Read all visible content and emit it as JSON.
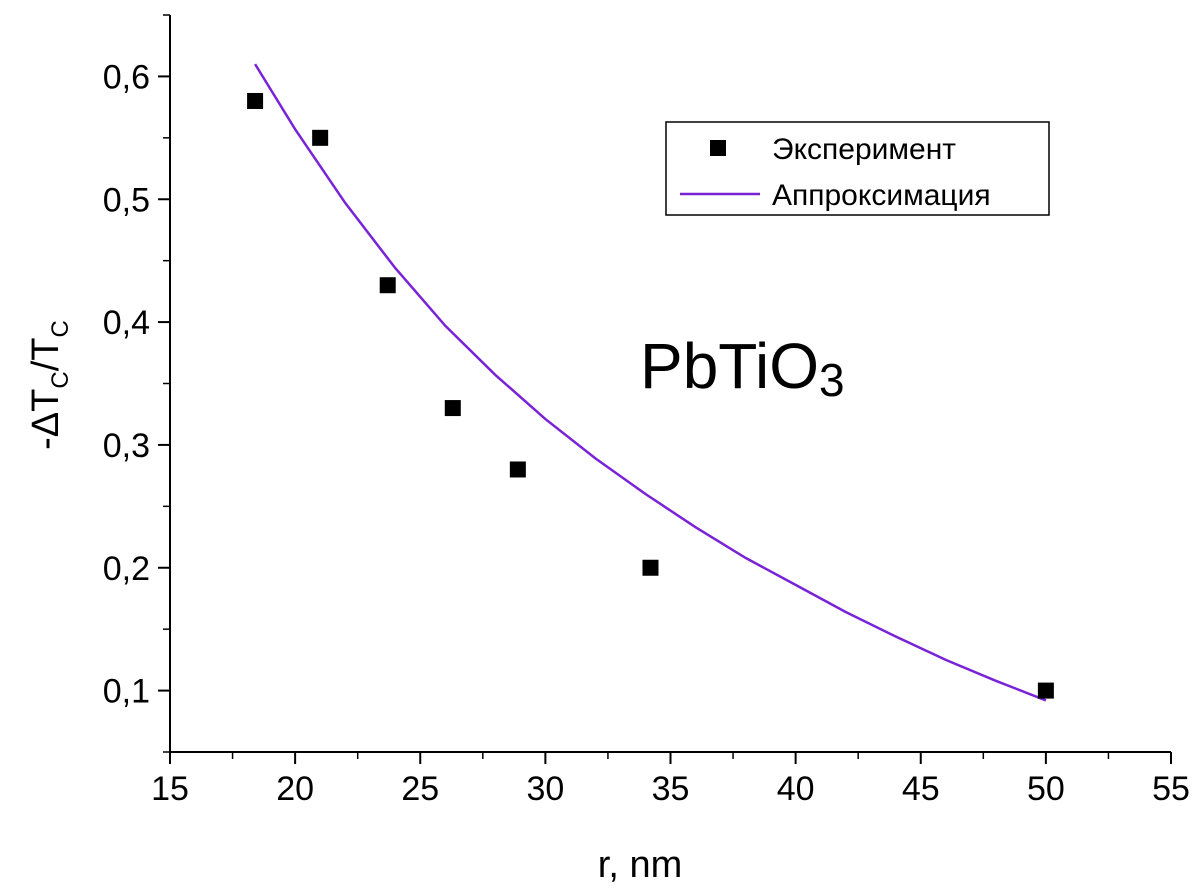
{
  "chart_data": {
    "type": "scatter",
    "title": "",
    "xlabel": "r, nm",
    "ylabel": {
      "main": "-ΔT",
      "sub1": "C",
      "slash": "/T",
      "sub2": "C"
    },
    "xlim": [
      15,
      55
    ],
    "ylim": [
      0.05,
      0.65
    ],
    "x_ticks": [
      15,
      20,
      25,
      30,
      35,
      40,
      45,
      50,
      55
    ],
    "x_tick_labels": [
      "15",
      "20",
      "25",
      "30",
      "35",
      "40",
      "45",
      "50",
      "55"
    ],
    "y_ticks": [
      0.1,
      0.2,
      0.3,
      0.4,
      0.5,
      0.6
    ],
    "y_tick_labels": [
      "0,1",
      "0,2",
      "0,3",
      "0,4",
      "0,5",
      "0,6"
    ],
    "grid": false,
    "legend_position": "top-right",
    "series": [
      {
        "name": "Эксперимент",
        "kind": "scatter",
        "marker": "square",
        "color": "#000000",
        "x": [
          18.4,
          21.0,
          23.7,
          26.3,
          28.9,
          34.2,
          50.0
        ],
        "y": [
          0.58,
          0.55,
          0.43,
          0.33,
          0.28,
          0.2,
          0.1
        ]
      },
      {
        "name": "Аппроксимация",
        "kind": "line",
        "color": "#7a22d6",
        "x": [
          18.4,
          20,
          22,
          24,
          26,
          28,
          30,
          32,
          34,
          36,
          38,
          40,
          42,
          44,
          46,
          48,
          50
        ],
        "y": [
          0.61,
          0.557,
          0.497,
          0.444,
          0.397,
          0.357,
          0.321,
          0.289,
          0.26,
          0.233,
          0.208,
          0.186,
          0.164,
          0.144,
          0.125,
          0.108,
          0.092
        ]
      }
    ],
    "annotation": {
      "text": "PbTiO",
      "subscript": "3"
    }
  }
}
